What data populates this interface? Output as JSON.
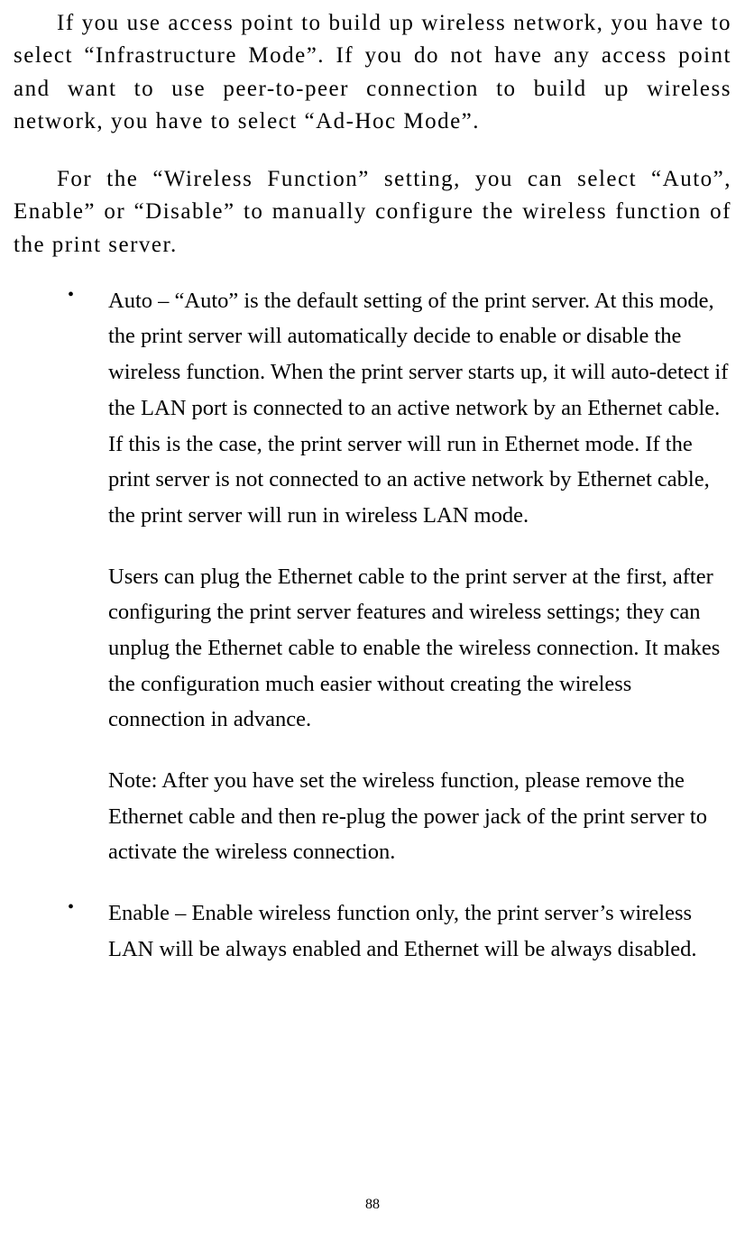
{
  "paragraphs": {
    "p1": "If you use access point to build up wireless network, you have to select “Infrastructure Mode”. If you do not have any access point and want to use peer-to-peer connection to build up wireless network, you have to select “Ad-Hoc Mode”.",
    "p2": "For the “Wireless Function” setting, you can select “Auto”, Enable” or “Disable” to manually configure the wireless function of the print server."
  },
  "bullets": {
    "auto": {
      "main": "Auto – “Auto” is the default setting of the print server. At this mode, the print server will automatically decide to enable or disable the wireless function. When the print server starts up, it will auto-detect if the LAN port is connected to an active network by an Ethernet cable. If this is the case, the print server will run in Ethernet mode. If the print server is not connected to an active network by Ethernet cable, the print server will run in wireless LAN mode.",
      "sub1": "Users can plug the Ethernet cable to the print server at the first, after configuring the print server features and wireless settings; they can unplug the Ethernet cable to enable the wireless connection. It makes the configuration much easier without creating the wireless connection in advance.",
      "sub2": "Note: After you have set the wireless function, please remove the Ethernet cable and then re-plug the power jack of the print server to activate the wireless connection."
    },
    "enable": {
      "main": "Enable – Enable wireless function only, the print server’s wireless LAN will be always enabled and Ethernet will be always disabled."
    }
  },
  "page_number": "88",
  "styling": {
    "body_width": 826,
    "body_height": 1375,
    "background_color": "#ffffff",
    "text_color": "#000000",
    "font_family": "Times New Roman",
    "justified_font_size": 25,
    "justified_letter_spacing": 1.5,
    "justified_line_height": 1.45,
    "bullet_font_size": 24.5,
    "bullet_line_height": 1.62,
    "page_number_font_size": 16,
    "text_indent": 48,
    "bullet_left_padding": 60,
    "bullet_item_indent": 45
  }
}
